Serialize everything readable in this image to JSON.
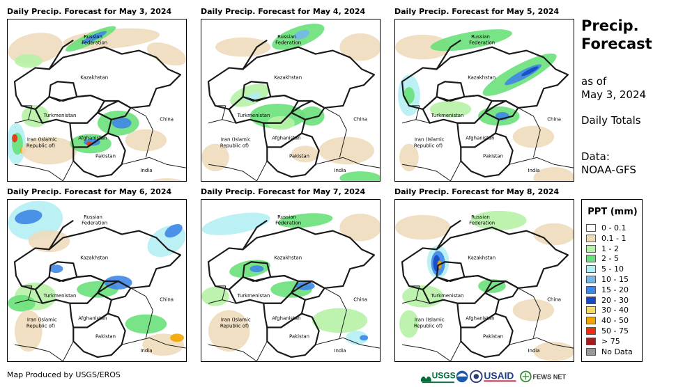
{
  "panels": [
    {
      "title": "Daily Precip. Forecast for May 3, 2024",
      "variant": 0
    },
    {
      "title": "Daily Precip. Forecast for May 4, 2024",
      "variant": 1
    },
    {
      "title": "Daily Precip. Forecast for May 5, 2024",
      "variant": 2
    },
    {
      "title": "Daily Precip. Forecast for May 6, 2024",
      "variant": 3
    },
    {
      "title": "Daily Precip. Forecast for May 7, 2024",
      "variant": 4
    },
    {
      "title": "Daily Precip. Forecast for May 8, 2024",
      "variant": 5
    }
  ],
  "map_labels": {
    "russia_line1": "Russian",
    "russia_line2": "Federation",
    "kazakhstan": "Kazakhstan",
    "turkmenistan": "Turkmenistan",
    "iran_line1": "Iran  (Islamic",
    "iran_line2": "Republic of)",
    "afghanistan": "Afghanistan",
    "pakistan": "Pakistan",
    "china": "China",
    "india": "India"
  },
  "sidebar": {
    "title_line1": "Precip.",
    "title_line2": "Forecast",
    "asof_line1": "as of",
    "asof_line2": "May 3, 2024",
    "totals": "Daily Totals",
    "data_line1": "Data:",
    "data_line2": "NOAA-GFS"
  },
  "legend": {
    "title": "PPT (mm)",
    "items": [
      {
        "label": "0 - 0.1",
        "color": "#ffffff"
      },
      {
        "label": "0.1 - 1",
        "color": "#eedcbc"
      },
      {
        "label": "1 - 2",
        "color": "#b6f2a6"
      },
      {
        "label": "2 - 5",
        "color": "#6ae07a"
      },
      {
        "label": "5 - 10",
        "color": "#b4eef4"
      },
      {
        "label": "10 - 15",
        "color": "#74b8ea"
      },
      {
        "label": "15 - 20",
        "color": "#3f86e6"
      },
      {
        "label": "20 - 30",
        "color": "#1548c8"
      },
      {
        "label": "30 - 40",
        "color": "#f4dc60"
      },
      {
        "label": "40 - 50",
        "color": "#f2a500"
      },
      {
        "label": "50 - 75",
        "color": "#ec3010"
      },
      {
        "label": "> 75",
        "color": "#a51c1c"
      },
      {
        "label": "No Data",
        "color": "#999999"
      }
    ]
  },
  "footer": {
    "credit": "Map Produced by USGS/EROS"
  },
  "logos": {
    "usgs": "USGS",
    "usaid": "USAID",
    "fews": "FEWS NET"
  }
}
